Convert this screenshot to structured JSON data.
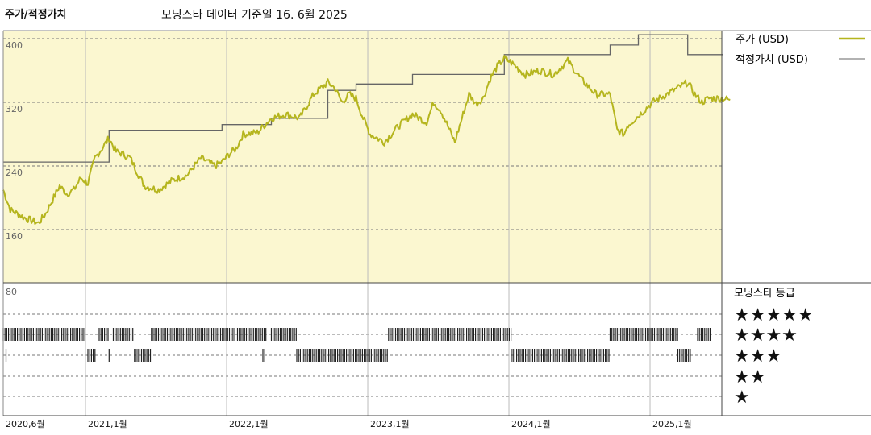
{
  "header": {
    "title": "주가/적정가치",
    "subtitle": "모닝스타 데이터 기준일 16. 6월 2025"
  },
  "legend": {
    "price": "주가 (USD)",
    "fair": "적정가치 (USD)"
  },
  "rating_panel": {
    "title": "모닝스타 등급",
    "levels": [
      "★★★★★",
      "★★★★",
      "★★★",
      "★★",
      "★"
    ]
  },
  "colors": {
    "price": "#b5b51e",
    "fair": "#666666",
    "upper_bg": "#fbf7d0",
    "bars": "#222222"
  },
  "chart_data": {
    "type": "line",
    "y_ticks": [
      "400",
      "320",
      "240",
      "160"
    ],
    "lower_tick": "80",
    "ylim": [
      80,
      410
    ],
    "x_ticks": [
      {
        "label": "2020,6월",
        "t": 0
      },
      {
        "label": "2021,1월",
        "t": 0.583
      },
      {
        "label": "2022,1월",
        "t": 1.583
      },
      {
        "label": "2023,1월",
        "t": 2.583
      },
      {
        "label": "2024,1월",
        "t": 3.583
      },
      {
        "label": "2025,1월",
        "t": 4.583
      }
    ],
    "price_series": {
      "t": [
        0,
        0.05,
        0.15,
        0.25,
        0.3,
        0.4,
        0.45,
        0.5,
        0.55,
        0.6,
        0.65,
        0.7,
        0.75,
        0.8,
        0.85,
        0.9,
        0.95,
        1.0,
        1.1,
        1.2,
        1.3,
        1.4,
        1.5,
        1.55,
        1.6,
        1.65,
        1.7,
        1.8,
        1.9,
        2.0,
        2.1,
        2.2,
        2.3,
        2.35,
        2.4,
        2.45,
        2.5,
        2.55,
        2.6,
        2.7,
        2.8,
        2.9,
        3.0,
        3.05,
        3.1,
        3.2,
        3.3,
        3.35,
        3.4,
        3.45,
        3.5,
        3.55,
        3.6,
        3.65,
        3.7,
        3.8,
        3.9,
        4.0,
        4.05,
        4.1,
        4.2,
        4.3,
        4.35,
        4.4,
        4.42,
        4.45,
        4.5,
        4.6,
        4.7,
        4.8,
        4.85,
        4.9,
        4.95,
        5.0,
        5.1,
        5.15
      ],
      "values": [
        210,
        185,
        175,
        168,
        180,
        215,
        205,
        210,
        225,
        218,
        250,
        262,
        275,
        258,
        255,
        250,
        232,
        215,
        210,
        222,
        228,
        250,
        240,
        245,
        255,
        262,
        280,
        282,
        300,
        305,
        300,
        330,
        345,
        338,
        320,
        330,
        325,
        300,
        280,
        270,
        290,
        305,
        295,
        320,
        310,
        270,
        330,
        318,
        325,
        350,
        365,
        375,
        370,
        362,
        355,
        360,
        355,
        372,
        360,
        348,
        330,
        330,
        285,
        280,
        290,
        295,
        303,
        320,
        330,
        340,
        345,
        330,
        320,
        325,
        325,
        323
      ]
    },
    "fair_series": {
      "t": [
        0,
        0.75,
        0.75,
        1.55,
        1.55,
        1.9,
        1.9,
        2.3,
        2.3,
        2.5,
        2.5,
        2.9,
        2.9,
        3.55,
        3.55,
        4.3,
        4.3,
        4.5,
        4.5,
        4.85,
        4.85,
        5.1
      ],
      "values": [
        245,
        245,
        285,
        285,
        292,
        292,
        300,
        300,
        335,
        335,
        343,
        343,
        355,
        355,
        380,
        380,
        392,
        392,
        405,
        405,
        380,
        380
      ]
    },
    "rating_periods": [
      {
        "stars": 4,
        "t0": 0.0,
        "t1": 0.58
      },
      {
        "stars": 3,
        "t0": 0.02,
        "t1": 0.03
      },
      {
        "stars": 4,
        "t0": 0.68,
        "t1": 0.75
      },
      {
        "stars": 3,
        "t0": 0.6,
        "t1": 0.66
      },
      {
        "stars": 4,
        "t0": 0.78,
        "t1": 0.93
      },
      {
        "stars": 3,
        "t0": 0.75,
        "t1": 0.76
      },
      {
        "stars": 3,
        "t0": 0.93,
        "t1": 1.05
      },
      {
        "stars": 4,
        "t0": 1.05,
        "t1": 1.65
      },
      {
        "stars": 4,
        "t0": 1.66,
        "t1": 1.87
      },
      {
        "stars": 3,
        "t0": 1.84,
        "t1": 1.86
      },
      {
        "stars": 4,
        "t0": 1.9,
        "t1": 2.08
      },
      {
        "stars": 3,
        "t0": 2.08,
        "t1": 2.73
      },
      {
        "stars": 4,
        "t0": 2.73,
        "t1": 3.6
      },
      {
        "stars": 3,
        "t0": 3.6,
        "t1": 4.3
      },
      {
        "stars": 4,
        "t0": 4.3,
        "t1": 4.78
      },
      {
        "stars": 3,
        "t0": 4.78,
        "t1": 4.88
      },
      {
        "stars": 4,
        "t0": 4.92,
        "t1": 5.02
      }
    ]
  }
}
